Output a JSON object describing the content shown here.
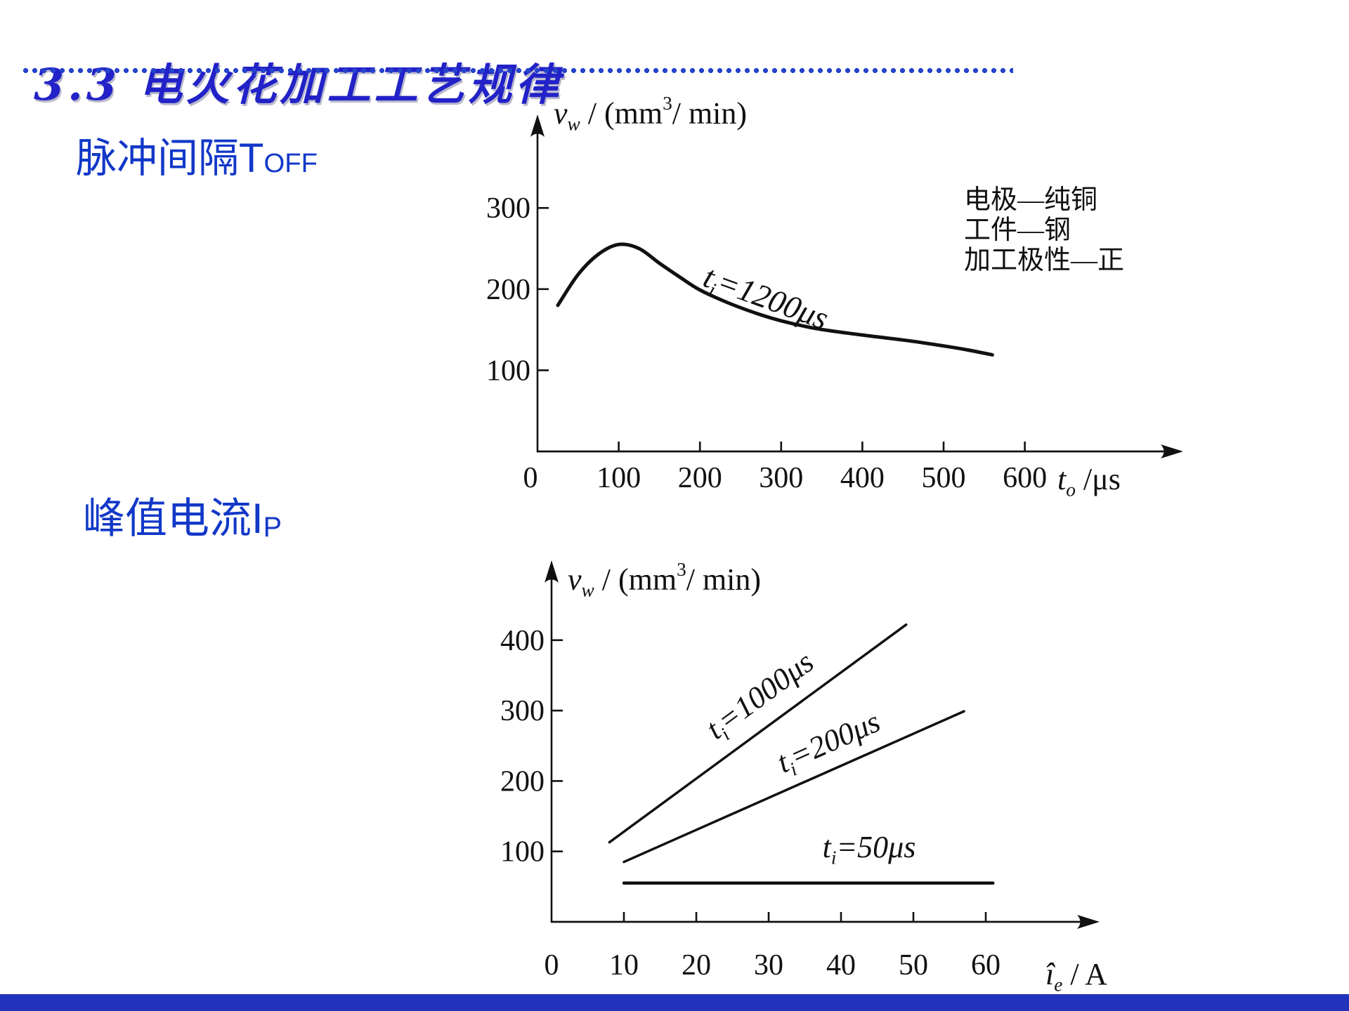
{
  "page": {
    "title": "3.3 电火花加工工艺规律",
    "title_color": "#2222c8",
    "accent_blue": "#1238c8",
    "dotted_rule_color": "#2543cb",
    "footer_color": "#2233bb",
    "ink": "#111111"
  },
  "sections": {
    "pulse_interval": {
      "prefix": "脉冲间隔",
      "symbol": "T",
      "subscript": "OFF"
    },
    "peak_current": {
      "prefix": "峰值电流",
      "symbol": "I",
      "subscript": "P"
    }
  },
  "chart_data": [
    {
      "type": "line",
      "id": "toff-chart",
      "title": "",
      "xlabel": "*t*_{o} /μs",
      "ylabel": "*v*_{w} / (mm^{3}/ min)",
      "xticks": [
        0,
        100,
        200,
        300,
        400,
        500,
        600
      ],
      "yticks": [
        100,
        200,
        300
      ],
      "xlim": [
        0,
        680
      ],
      "ylim": [
        0,
        420
      ],
      "grid": false,
      "annotation": [
        "电极—纯铜",
        "工件—钢",
        "加工极性—正"
      ],
      "series": [
        {
          "name": "ti=1200us",
          "label": "t_{i}=1200μs",
          "smooth": true,
          "x": [
            25,
            50,
            75,
            100,
            125,
            150,
            175,
            200,
            235,
            270,
            300,
            340,
            380,
            420,
            460,
            500,
            530,
            560
          ],
          "y": [
            180,
            218,
            243,
            255,
            250,
            232,
            215,
            199,
            183,
            170,
            161,
            152,
            146,
            141,
            136,
            130,
            125,
            119
          ]
        }
      ]
    },
    {
      "type": "line",
      "id": "ip-chart",
      "title": "",
      "xlabel": "*î*_{e} / A",
      "ylabel": "*v*_{w} / (mm^{3}/ min)",
      "xticks": [
        0,
        10,
        20,
        30,
        40,
        50,
        60
      ],
      "yticks": [
        100,
        200,
        300,
        400
      ],
      "xlim": [
        0,
        72
      ],
      "ylim": [
        0,
        480
      ],
      "grid": false,
      "annotation": [],
      "series": [
        {
          "name": "ti=1000us",
          "label": "t_{i}=1000μs",
          "smooth": false,
          "x": [
            8,
            49
          ],
          "y": [
            113,
            422
          ]
        },
        {
          "name": "ti=200us",
          "label": "t_{i}=200μs",
          "smooth": false,
          "x": [
            10,
            57
          ],
          "y": [
            85,
            299
          ]
        },
        {
          "name": "ti=50us",
          "label": "t_{i}=50μs",
          "smooth": false,
          "x": [
            10,
            61
          ],
          "y": [
            55,
            55
          ]
        }
      ]
    }
  ]
}
